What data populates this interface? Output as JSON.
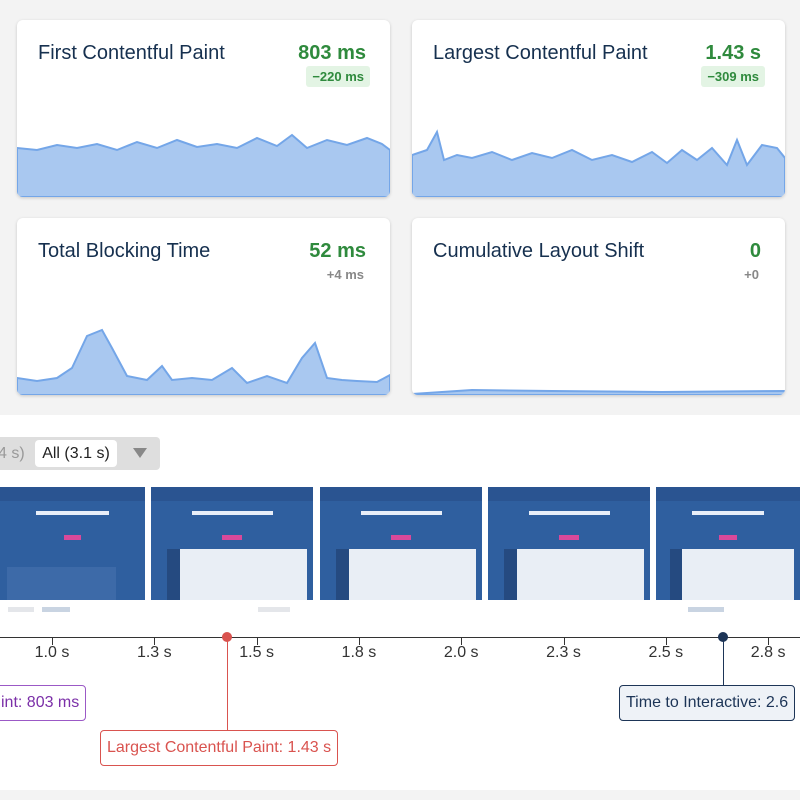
{
  "metrics": [
    {
      "title": "First Contentful Paint",
      "value": "803 ms",
      "delta": "−220 ms"
    },
    {
      "title": "Largest Contentful Paint",
      "value": "1.43 s",
      "delta": "−309 ms"
    },
    {
      "title": "Total Blocking Time",
      "value": "52 ms",
      "delta": "+4 ms"
    },
    {
      "title": "Cumulative Layout Shift",
      "value": "0",
      "delta": "+0"
    }
  ],
  "filmstrip": {
    "previous_option": "4 s)",
    "selected_option": "All (3.1 s)"
  },
  "timeline": {
    "ticks": [
      "1.0 s",
      "1.3 s",
      "1.5 s",
      "1.8 s",
      "2.0 s",
      "2.3 s",
      "2.5 s",
      "2.8 s"
    ],
    "markers": [
      {
        "label": "int: 803 ms"
      },
      {
        "label": "Largest Contentful Paint: 1.43 s"
      },
      {
        "label": "Time to Interactive: 2.6"
      }
    ]
  }
}
